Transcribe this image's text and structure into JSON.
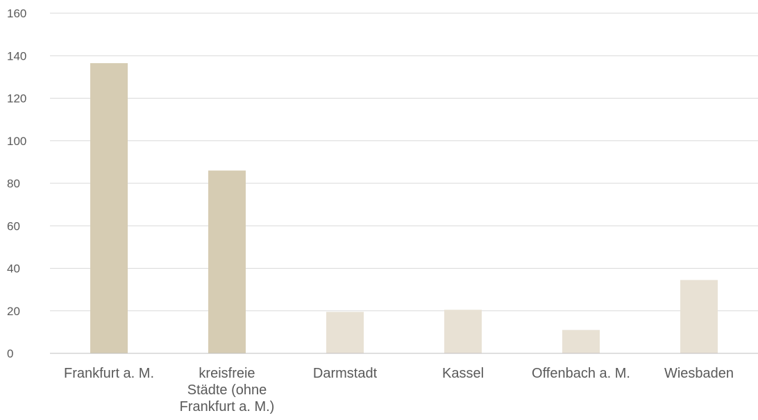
{
  "chart_data": {
    "type": "bar",
    "categories": [
      [
        "Frankfurt a. M."
      ],
      [
        "kreisfreie",
        "Städte (ohne",
        "Frankfurt a. M.)"
      ],
      [
        "Darmstadt"
      ],
      [
        "Kassel"
      ],
      [
        "Offenbach a. M."
      ],
      [
        "Wiesbaden"
      ]
    ],
    "values": [
      136.5,
      86,
      19.5,
      20.5,
      11,
      34.5
    ],
    "bar_colors": [
      "#d6ccb3",
      "#d6ccb3",
      "#e8e1d4",
      "#e8e1d4",
      "#e8e1d4",
      "#e8e1d4"
    ],
    "ylim": [
      0,
      160
    ],
    "yticks": [
      "0",
      "20",
      "40",
      "60",
      "80",
      "100",
      "120",
      "140",
      "160"
    ],
    "grid": true,
    "title": "",
    "xlabel": "",
    "ylabel": ""
  }
}
